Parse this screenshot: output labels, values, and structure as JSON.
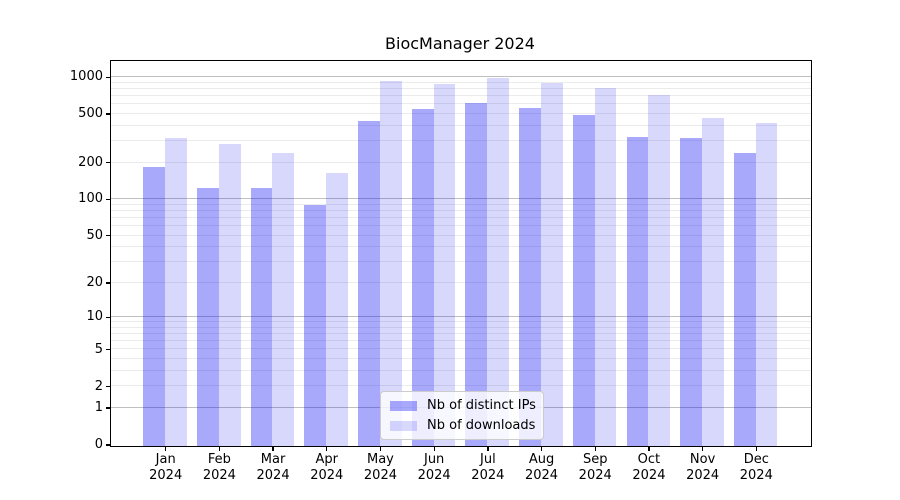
{
  "chart_data": {
    "type": "bar",
    "title": "BiocManager 2024",
    "categories": [
      "Jan 2024",
      "Feb 2024",
      "Mar 2024",
      "Apr 2024",
      "May 2024",
      "Jun 2024",
      "Jul 2024",
      "Aug 2024",
      "Sep 2024",
      "Oct 2024",
      "Nov 2024",
      "Dec 2024"
    ],
    "series": [
      {
        "name": "Nb of distinct IPs",
        "color": "rgba(10,10,245,0.35)",
        "values": [
          186,
          125,
          126,
          91,
          440,
          553,
          619,
          563,
          498,
          331,
          324,
          242
        ]
      },
      {
        "name": "Nb of downloads",
        "color": "rgba(10,10,245,0.16)",
        "values": [
          324,
          288,
          241,
          165,
          948,
          885,
          990,
          908,
          832,
          719,
          466,
          428
        ]
      }
    ],
    "xlabel": "",
    "ylabel": "",
    "yscale": "log1p",
    "ylim": [
      0,
      1330
    ],
    "yticks": [
      0,
      1,
      2,
      5,
      10,
      20,
      50,
      100,
      200,
      500,
      1000
    ],
    "major_gridlines": [
      1,
      10,
      100,
      1000
    ],
    "minor_gridlines": [
      2,
      3,
      4,
      5,
      6,
      7,
      8,
      9,
      20,
      30,
      40,
      50,
      60,
      70,
      80,
      90,
      200,
      300,
      400,
      500,
      600,
      700,
      800,
      900
    ],
    "grid": true,
    "legend_position": "lower center"
  },
  "colors": {
    "spine": "#000000",
    "major_grid": "#bfbfbf",
    "minor_grid": "#ebebeb",
    "background": "#ffffff"
  }
}
